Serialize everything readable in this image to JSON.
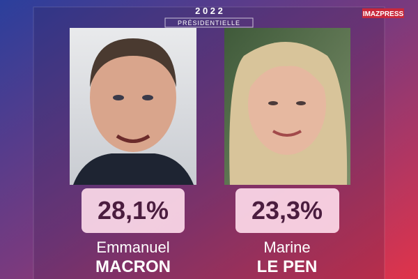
{
  "header": {
    "year": "2 0 2 2",
    "subtitle": "PRÉSIDENTIELLE"
  },
  "brand": "IMAZPRESS",
  "candidates": [
    {
      "first_name": "Emmanuel",
      "last_name": "MACRON",
      "score": "28,1%"
    },
    {
      "first_name": "Marine",
      "last_name": "LE PEN",
      "score": "23,3%"
    }
  ]
}
